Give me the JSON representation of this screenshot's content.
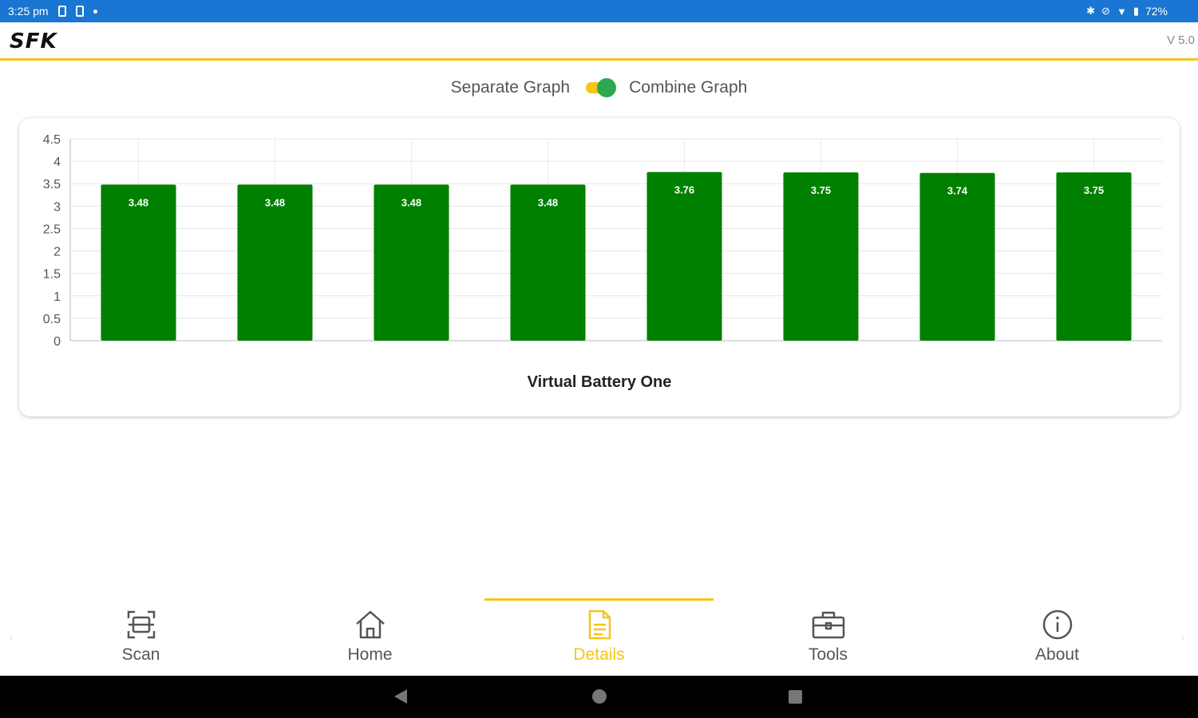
{
  "status_bar": {
    "time": "3:25 pm",
    "battery": "72%",
    "left_icons": [
      "sim-icon",
      "card-icon",
      "dot-icon"
    ],
    "right_icons": [
      "bluetooth-icon",
      "vibrate-off-icon",
      "wifi-icon",
      "battery-icon"
    ]
  },
  "app_bar": {
    "logo": "SFK",
    "version": "V 5.0"
  },
  "toggle": {
    "left_label": "Separate Graph",
    "right_label": "Combine Graph",
    "state": "on",
    "track_color": "#f5c518",
    "thumb_color": "#2ea84f"
  },
  "chart_data": {
    "type": "bar",
    "title": "Virtual Battery One",
    "categories": [
      "",
      "",
      "",
      "",
      "",
      "",
      "",
      ""
    ],
    "values": [
      3.48,
      3.48,
      3.48,
      3.48,
      3.76,
      3.75,
      3.74,
      3.75
    ],
    "data_labels": [
      "3.48",
      "3.48",
      "3.48",
      "3.48",
      "3.76",
      "3.75",
      "3.74",
      "3.75"
    ],
    "y_ticks": [
      "0",
      "0.5",
      "1",
      "1.5",
      "2",
      "2.5",
      "3",
      "3.5",
      "4",
      "4.5"
    ],
    "ylim": [
      0,
      4.5
    ],
    "grid": true,
    "bar_color": "#008000"
  },
  "nav": {
    "items": [
      {
        "label": "Scan",
        "icon": "scan-icon"
      },
      {
        "label": "Home",
        "icon": "home-icon"
      },
      {
        "label": "Details",
        "icon": "document-icon"
      },
      {
        "label": "Tools",
        "icon": "toolbox-icon"
      },
      {
        "label": "About",
        "icon": "info-icon"
      }
    ],
    "active_index": 2,
    "active_color": "#f5c518"
  },
  "system_nav": {
    "buttons": [
      "back-icon",
      "home-circle-icon",
      "recents-icon"
    ]
  }
}
